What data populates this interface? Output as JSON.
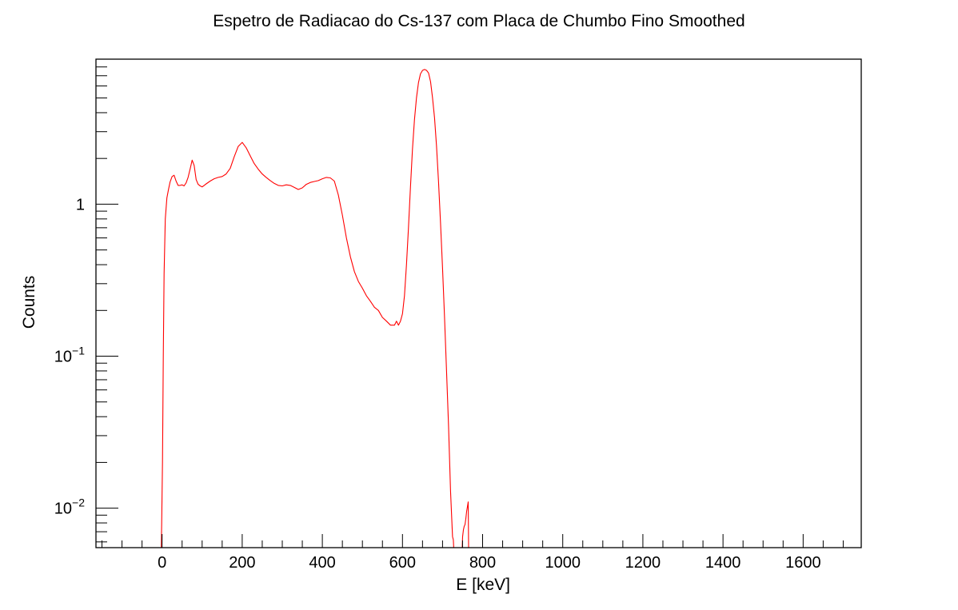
{
  "chart_data": {
    "type": "line",
    "title": "Espetro de Radiacao do Cs-137 com Placa de Chumbo Fino Smoothed",
    "xlabel": "E [keV]",
    "ylabel": "Counts",
    "xlim": [
      -165,
      1745
    ],
    "ylim": [
      0.0055,
      9
    ],
    "yscale": "log",
    "x_ticks": [
      0,
      200,
      400,
      600,
      800,
      1000,
      1200,
      1400,
      1600
    ],
    "x_tick_labels": [
      "0",
      "200",
      "400",
      "600",
      "800",
      "1000",
      "1200",
      "1400",
      "1600"
    ],
    "y_ticks": [
      0.01,
      0.1,
      1
    ],
    "y_tick_labels": [
      {
        "base": "10",
        "exp": "−2"
      },
      {
        "base": "10",
        "exp": "−1"
      },
      {
        "base": "1",
        "exp": ""
      }
    ],
    "grid": false,
    "series": [
      {
        "color": "#ff0000",
        "x": [
          -2,
          -1,
          1,
          3,
          5,
          8,
          12,
          16,
          20,
          25,
          30,
          35,
          40,
          45,
          50,
          55,
          60,
          65,
          70,
          75,
          80,
          85,
          90,
          95,
          100,
          110,
          120,
          130,
          140,
          150,
          160,
          170,
          180,
          190,
          200,
          210,
          220,
          230,
          240,
          250,
          260,
          270,
          280,
          290,
          300,
          310,
          320,
          330,
          340,
          350,
          360,
          370,
          380,
          390,
          400,
          410,
          420,
          430,
          440,
          450,
          460,
          470,
          480,
          490,
          500,
          510,
          520,
          530,
          540,
          550,
          560,
          570,
          580,
          585,
          590,
          595,
          600,
          605,
          610,
          615,
          620,
          625,
          630,
          635,
          640,
          645,
          650,
          655,
          660,
          665,
          670,
          675,
          680,
          685,
          690,
          695,
          700,
          705,
          710,
          715,
          720,
          725,
          727,
          728
        ],
        "y": [
          0.0055,
          0.008,
          0.02,
          0.1,
          0.35,
          0.8,
          1.1,
          1.25,
          1.4,
          1.52,
          1.55,
          1.42,
          1.33,
          1.33,
          1.34,
          1.32,
          1.38,
          1.5,
          1.7,
          1.95,
          1.8,
          1.45,
          1.35,
          1.32,
          1.3,
          1.36,
          1.42,
          1.47,
          1.5,
          1.52,
          1.58,
          1.72,
          2.05,
          2.4,
          2.55,
          2.35,
          2.08,
          1.85,
          1.7,
          1.58,
          1.5,
          1.43,
          1.37,
          1.33,
          1.32,
          1.34,
          1.33,
          1.29,
          1.25,
          1.28,
          1.35,
          1.39,
          1.41,
          1.43,
          1.47,
          1.5,
          1.49,
          1.42,
          1.15,
          0.85,
          0.6,
          0.45,
          0.36,
          0.31,
          0.28,
          0.25,
          0.23,
          0.21,
          0.2,
          0.18,
          0.17,
          0.16,
          0.16,
          0.17,
          0.16,
          0.17,
          0.19,
          0.25,
          0.4,
          0.7,
          1.3,
          2.3,
          3.6,
          5.0,
          6.3,
          7.2,
          7.6,
          7.7,
          7.6,
          7.3,
          6.4,
          5.0,
          3.7,
          2.4,
          1.4,
          0.75,
          0.38,
          0.18,
          0.08,
          0.035,
          0.013,
          0.0065,
          0.0062,
          0.0055
        ]
      },
      {
        "color": "#ff0000",
        "x": [
          749,
          750,
          752,
          754,
          756,
          758,
          760,
          762,
          764,
          765
        ],
        "y": [
          0.0055,
          0.0065,
          0.0072,
          0.0076,
          0.0078,
          0.0085,
          0.0095,
          0.0102,
          0.011,
          0.0055
        ]
      }
    ]
  }
}
